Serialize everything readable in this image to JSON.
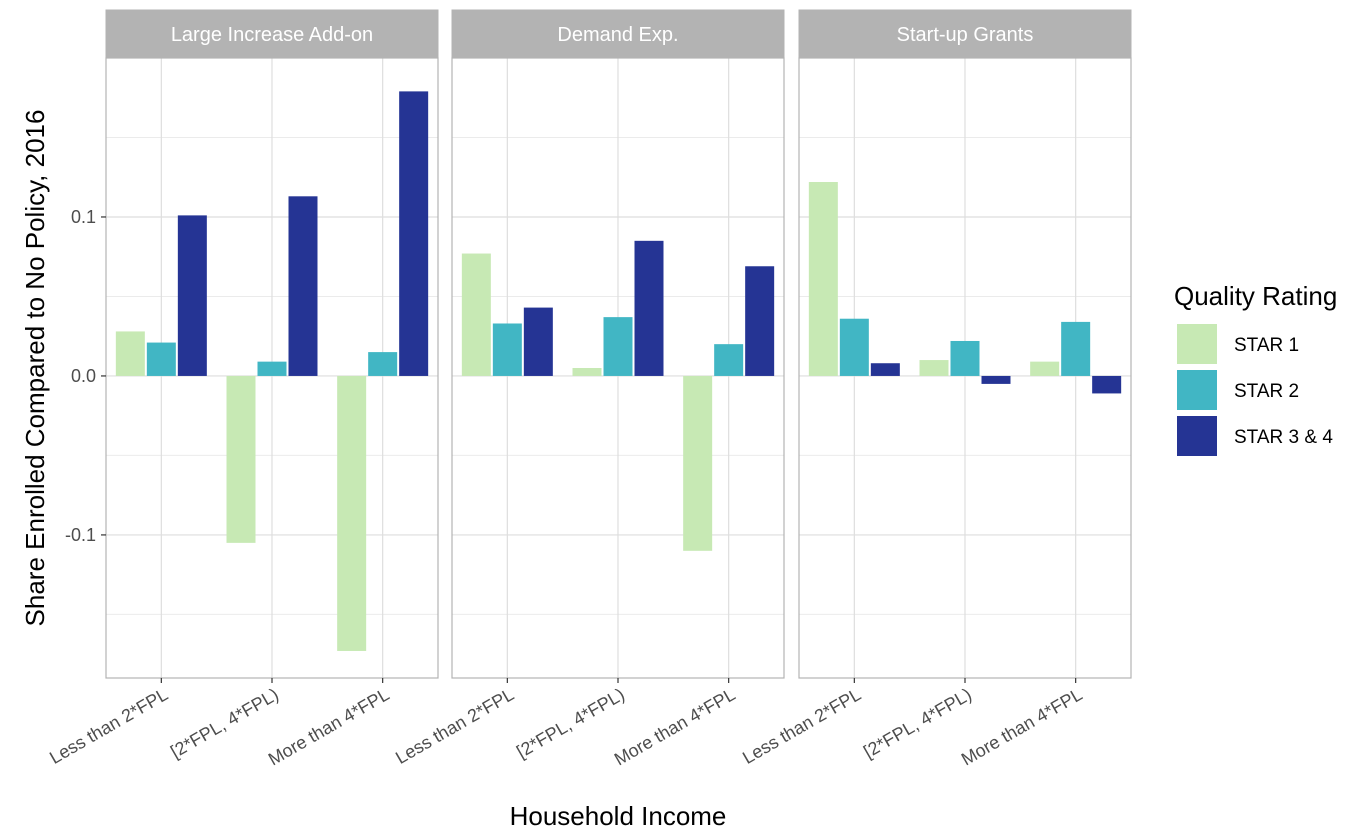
{
  "chart_data": {
    "type": "bar",
    "ylabel": "Share Enrolled Compared to No Policy, 2016",
    "xlabel": "Household Income",
    "ylim": [
      -0.19,
      0.2
    ],
    "yticks": [
      -0.1,
      0.0,
      0.1
    ],
    "ytick_labels": [
      "-0.1",
      "0.0",
      "0.1"
    ],
    "grid": true,
    "legend_position": "right",
    "legend": {
      "title": "Quality Rating",
      "items": [
        {
          "label": "STAR 1",
          "color": "#c7e9b4"
        },
        {
          "label": "STAR 2",
          "color": "#41b6c4"
        },
        {
          "label": "STAR 3 & 4",
          "color": "#253494"
        }
      ]
    },
    "categories": [
      "Less than 2*FPL",
      "[2*FPL, 4*FPL)",
      "More than 4*FPL"
    ],
    "panels": [
      {
        "title": "Large Increase Add-on",
        "series": [
          {
            "name": "STAR 1",
            "values": [
              0.028,
              -0.105,
              -0.173
            ]
          },
          {
            "name": "STAR 2",
            "values": [
              0.021,
              0.009,
              0.015
            ]
          },
          {
            "name": "STAR 3 & 4",
            "values": [
              0.101,
              0.113,
              0.179
            ]
          }
        ]
      },
      {
        "title": "Demand Exp.",
        "series": [
          {
            "name": "STAR 1",
            "values": [
              0.077,
              0.005,
              -0.11
            ]
          },
          {
            "name": "STAR 2",
            "values": [
              0.033,
              0.037,
              0.02
            ]
          },
          {
            "name": "STAR 3 & 4",
            "values": [
              0.043,
              0.085,
              0.069
            ]
          }
        ]
      },
      {
        "title": "Start-up Grants",
        "series": [
          {
            "name": "STAR 1",
            "values": [
              0.122,
              0.01,
              0.009
            ]
          },
          {
            "name": "STAR 2",
            "values": [
              0.036,
              0.022,
              0.034
            ]
          },
          {
            "name": "STAR 3 & 4",
            "values": [
              0.008,
              -0.005,
              -0.011
            ]
          }
        ]
      }
    ]
  }
}
